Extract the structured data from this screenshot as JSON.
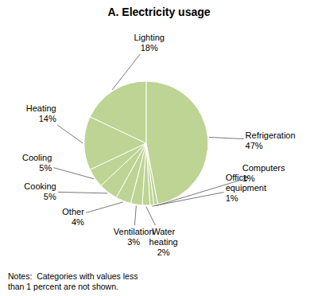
{
  "chart_data": {
    "type": "pie",
    "title": "A. Electricity usage",
    "categories": [
      "Refrigeration",
      "Computers",
      "Office equipment",
      "Water heating",
      "Ventilation",
      "Other",
      "Cooking",
      "Cooling",
      "Heating",
      "Lighting"
    ],
    "values": [
      47,
      1,
      1,
      2,
      3,
      4,
      5,
      5,
      14,
      18
    ],
    "value_labels": [
      "47%",
      "1%",
      "1%",
      "2%",
      "3%",
      "4%",
      "5%",
      "5%",
      "14%",
      "18%"
    ],
    "data_labels": true,
    "color": "#bdd494",
    "annotations": [
      "Notes:  Categories with values less\nthan 1 percent are not shown."
    ]
  }
}
